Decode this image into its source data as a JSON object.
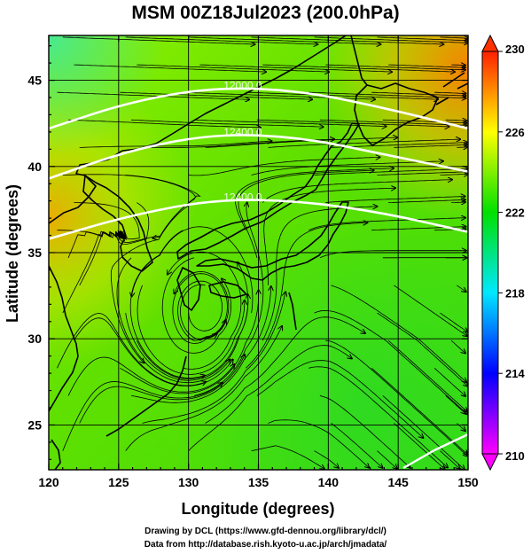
{
  "title": "MSM 00Z18Jul2023 (200.0hPa)",
  "credits": [
    "Drawing by DCL (https://www.gfd-dennou.org/library/dcl/)",
    "Data from http://database.rish.kyoto-u.ac.jp/arch/jmadata/"
  ],
  "chart_data": {
    "type": "heatmap",
    "title": "MSM 00Z18Jul2023 (200.0hPa)",
    "xlabel": "Longitude (degrees)",
    "ylabel": "Latitude  (degrees)",
    "xlim": [
      120,
      150
    ],
    "ylim": [
      22.4,
      47.6
    ],
    "xticks": [
      120,
      125,
      130,
      135,
      140,
      145,
      150
    ],
    "yticks": [
      25,
      30,
      35,
      40,
      45
    ],
    "grid": true,
    "colorbar": {
      "ticks": [
        210,
        214,
        218,
        222,
        226,
        230
      ],
      "range": [
        210,
        230
      ],
      "colors": [
        "#ff00ff",
        "#0000ff",
        "#00ffff",
        "#00ff00",
        "#ffff00",
        "#ff0000"
      ]
    },
    "contours": [
      {
        "label": "12000.0",
        "lon": [
          120,
          126,
          132,
          138,
          144,
          150
        ],
        "lat": [
          42.2,
          43.8,
          44.6,
          44.4,
          43.4,
          42.2
        ]
      },
      {
        "label": "12400.0",
        "lon": [
          120,
          126,
          132,
          138,
          144,
          150
        ],
        "lat": [
          39.3,
          41.0,
          41.9,
          41.7,
          40.7,
          39.7
        ]
      },
      {
        "label": "12400.0",
        "lon": [
          120,
          126,
          132,
          138,
          144,
          150
        ],
        "lat": [
          35.8,
          37.2,
          38.1,
          38.0,
          37.3,
          36.2
        ]
      }
    ]
  }
}
